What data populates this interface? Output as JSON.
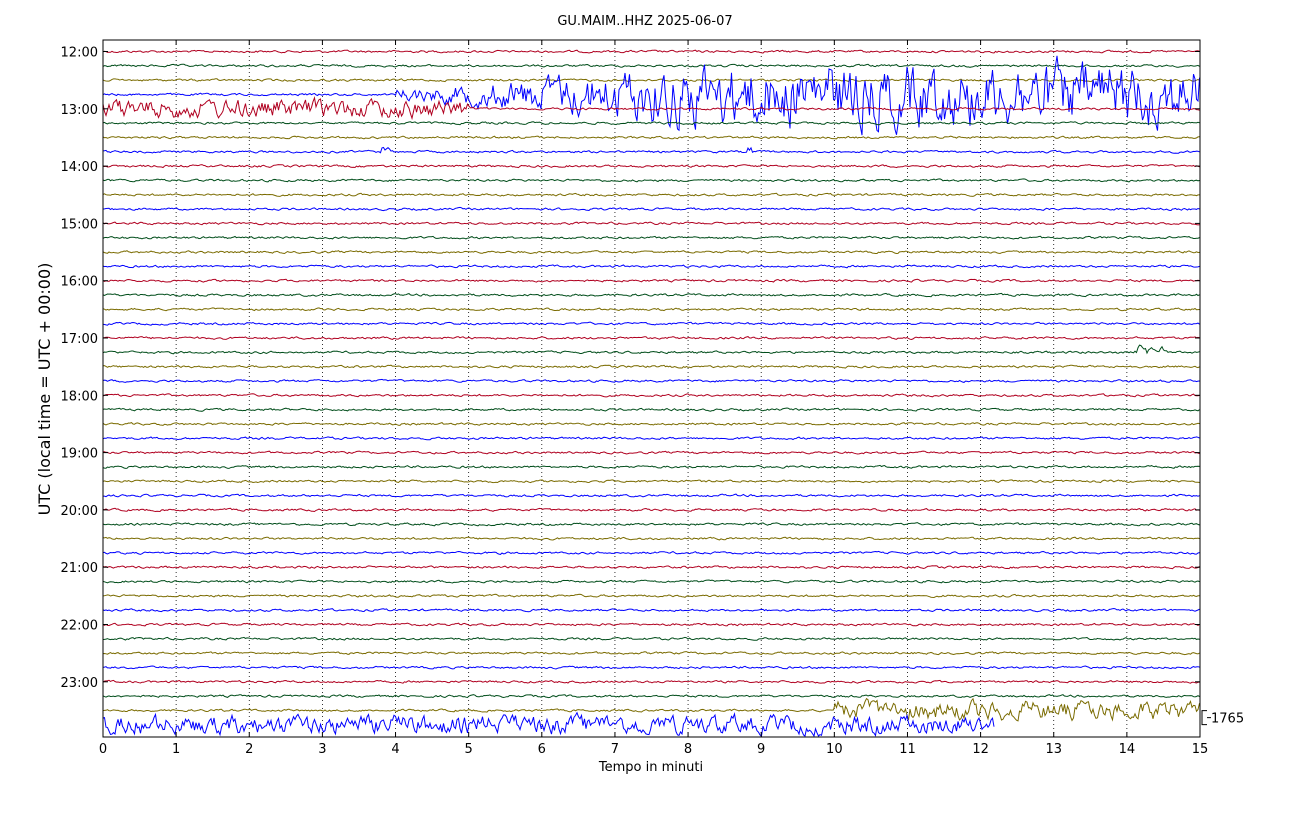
{
  "chart_data": {
    "type": "line",
    "title": "GU.MAIM..HHZ 2025-06-07",
    "xlabel": "Tempo in minuti",
    "ylabel": "UTC (local time = UTC + 00:00)",
    "xlim": [
      0,
      15
    ],
    "x_ticks": [
      "0",
      "1",
      "2",
      "3",
      "4",
      "5",
      "6",
      "7",
      "8",
      "9",
      "10",
      "11",
      "12",
      "13",
      "14",
      "15"
    ],
    "y_ticks": [
      "12:00",
      "13:00",
      "14:00",
      "15:00",
      "16:00",
      "17:00",
      "18:00",
      "19:00",
      "20:00",
      "21:00",
      "22:00",
      "23:00"
    ],
    "grid": true,
    "trace_interval_minutes": 15,
    "first_trace": "12:00",
    "trace_count": 48,
    "trace_colors": [
      "#b00020",
      "#004d1a",
      "#7a6b00",
      "#0000ff"
    ],
    "scale_label": "1765",
    "events": [
      {
        "trace": "12:45",
        "start_min": 4.0,
        "end_min": 15.0,
        "amplitude": "large"
      },
      {
        "trace": "13:00",
        "start_min": 0.0,
        "end_min": 5.0,
        "amplitude": "medium"
      },
      {
        "trace": "13:45",
        "start_min": 3.8,
        "end_min": 3.9,
        "amplitude": "small"
      },
      {
        "trace": "13:45",
        "start_min": 8.8,
        "end_min": 8.9,
        "amplitude": "small"
      },
      {
        "trace": "17:15",
        "start_min": 14.1,
        "end_min": 14.5,
        "amplitude": "small"
      },
      {
        "trace": "23:30",
        "start_min": 10.0,
        "end_min": 15.0,
        "amplitude": "medium"
      },
      {
        "trace": "23:45",
        "start_min": 0.0,
        "end_min": 12.2,
        "amplitude": "medium"
      }
    ]
  }
}
